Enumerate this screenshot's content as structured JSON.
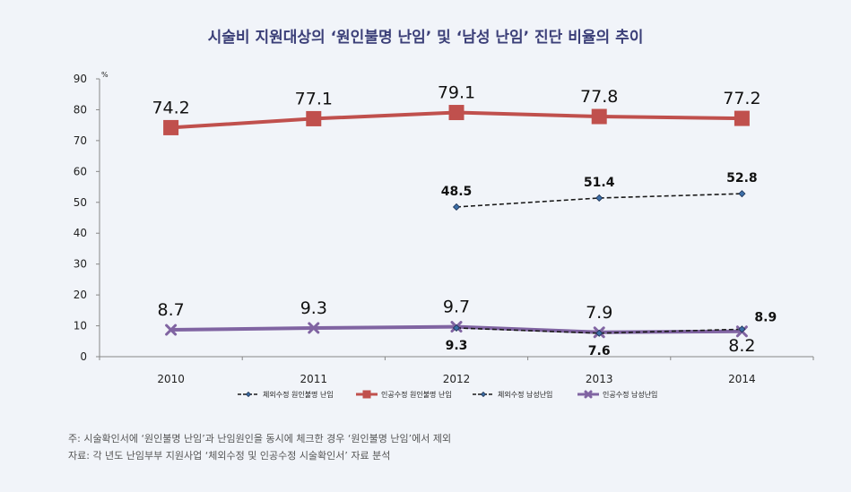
{
  "chart_data": {
    "type": "line",
    "title": "시술비 지원대상의 ‘원인불명 난임’ 및 ‘남성 난임’ 진단 비율의 추이",
    "ylabel": "%",
    "ylim": [
      0,
      90
    ],
    "yticks": [
      "0",
      "10",
      "20",
      "30",
      "40",
      "50",
      "60",
      "70",
      "80",
      "90"
    ],
    "categories": [
      "2010",
      "2011",
      "2012",
      "2013",
      "2014"
    ],
    "grid": false,
    "legend_position": "bottom",
    "series": [
      {
        "name": "체외수정 원인불명 난임",
        "values": [
          null,
          null,
          48.5,
          51.4,
          52.8
        ],
        "labels": [
          "",
          "",
          "48.5",
          "51.4",
          "52.8"
        ],
        "color": "#1a1a1a",
        "dash": true,
        "marker": "diamond",
        "label_pos": "above",
        "label_bold": true
      },
      {
        "name": "인공수정 원인불명 난임",
        "values": [
          74.2,
          77.1,
          79.1,
          77.8,
          77.2
        ],
        "labels": [
          "74.2",
          "77.1",
          "79.1",
          "77.8",
          "77.2"
        ],
        "color": "#c0504d",
        "dash": false,
        "marker": "square",
        "label_pos": "above",
        "label_bold": false
      },
      {
        "name": "체외수정 남성난임",
        "values": [
          null,
          null,
          9.3,
          7.6,
          8.9
        ],
        "labels": [
          "",
          "",
          "9.3",
          "7.6",
          "8.9"
        ],
        "color": "#1a1a1a",
        "dash": true,
        "marker": "diamond",
        "label_pos": "below",
        "label_bold": true
      },
      {
        "name": "인공수정 남성난임",
        "values": [
          8.7,
          9.3,
          9.7,
          7.9,
          8.2
        ],
        "labels": [
          "8.7",
          "9.3",
          "9.7",
          "7.9",
          "8.2"
        ],
        "color": "#8064a2",
        "dash": false,
        "marker": "x",
        "label_pos": "above",
        "label_bold": false
      }
    ]
  },
  "notes": {
    "note1": "주: 시술확인서에 ‘원인불명 난임’과 난임원인을 동시에 체크한 경우 ‘원인불명 난임’에서 제외",
    "note2": "자료: 각 년도 난임부부 지원사업 ‘체외수정 및 인공수정 시술확인서’ 자료 분석"
  }
}
